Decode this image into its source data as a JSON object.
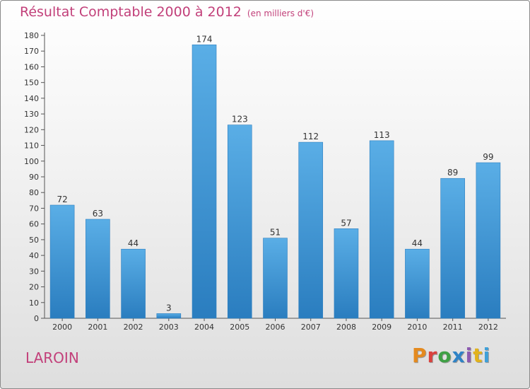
{
  "header": {
    "title": "Résultat Comptable 2000 à 2012",
    "subtitle": "(en milliers d'€)"
  },
  "footer": {
    "commune": "LAROIN",
    "brand": [
      "P",
      "r",
      "o",
      "x",
      "i",
      "t",
      "i"
    ]
  },
  "colors": {
    "bar_light": "#5aaee6",
    "bar_dark": "#2a7dbf",
    "title": "#c2407a"
  },
  "chart_data": {
    "type": "bar",
    "title": "Résultat Comptable 2000 à 2012",
    "subtitle": "(en milliers d'€)",
    "categories": [
      "2000",
      "2001",
      "2002",
      "2003",
      "2004",
      "2005",
      "2006",
      "2007",
      "2008",
      "2009",
      "2010",
      "2011",
      "2012"
    ],
    "values": [
      72,
      63,
      44,
      3,
      174,
      123,
      51,
      112,
      57,
      113,
      44,
      89,
      99
    ],
    "ylim": [
      0,
      180
    ],
    "yticks": [
      0,
      10,
      20,
      30,
      40,
      50,
      60,
      70,
      80,
      90,
      100,
      110,
      120,
      130,
      140,
      150,
      160,
      170,
      180
    ],
    "xlabel": "",
    "ylabel": "",
    "grid": false
  }
}
